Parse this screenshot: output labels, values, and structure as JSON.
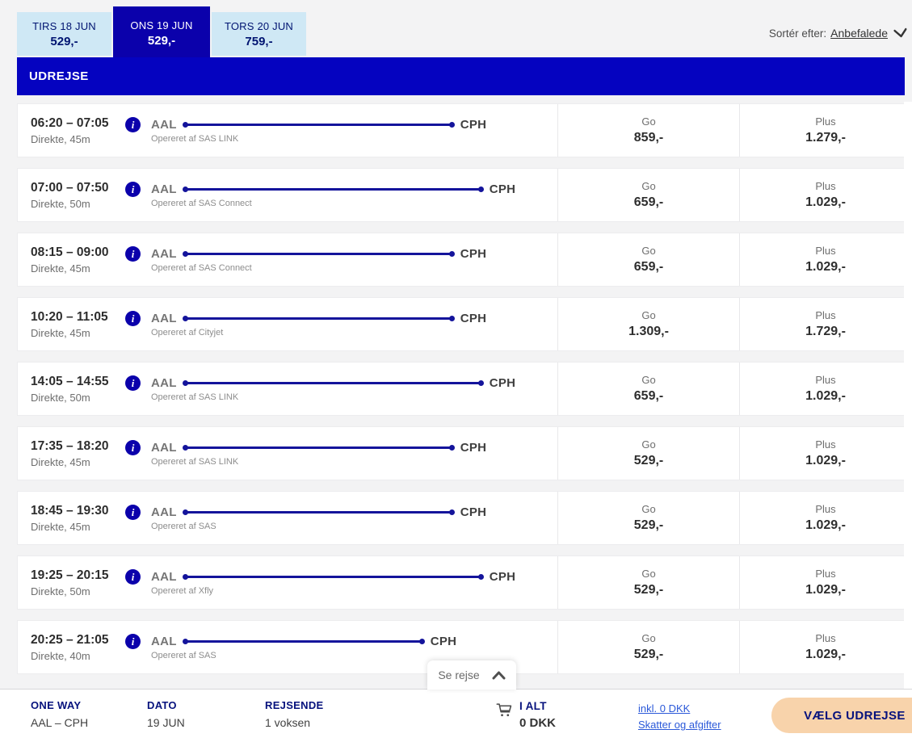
{
  "tabs": [
    {
      "date": "TIRS 18 JUN",
      "price": "529,-",
      "selected": false
    },
    {
      "date": "ONS 19 JUN",
      "price": "529,-",
      "selected": true
    },
    {
      "date": "TORS 20 JUN",
      "price": "759,-",
      "selected": false
    }
  ],
  "sort": {
    "label": "Sortér efter:",
    "value": "Anbefalede"
  },
  "section_title": "UDREJSE",
  "fare_labels": {
    "go": "Go",
    "plus": "Plus"
  },
  "flights": [
    {
      "times": "06:20 – 07:05",
      "meta": "Direkte, 45m",
      "duration_min": 45,
      "origin": "AAL",
      "destination": "CPH",
      "operator": "Opereret af SAS LINK",
      "go_price": "859,-",
      "plus_price": "1.279,-"
    },
    {
      "times": "07:00 – 07:50",
      "meta": "Direkte, 50m",
      "duration_min": 50,
      "origin": "AAL",
      "destination": "CPH",
      "operator": "Opereret af SAS Connect",
      "go_price": "659,-",
      "plus_price": "1.029,-"
    },
    {
      "times": "08:15 – 09:00",
      "meta": "Direkte, 45m",
      "duration_min": 45,
      "origin": "AAL",
      "destination": "CPH",
      "operator": "Opereret af SAS Connect",
      "go_price": "659,-",
      "plus_price": "1.029,-"
    },
    {
      "times": "10:20 – 11:05",
      "meta": "Direkte, 45m",
      "duration_min": 45,
      "origin": "AAL",
      "destination": "CPH",
      "operator": "Opereret af Cityjet",
      "go_price": "1.309,-",
      "plus_price": "1.729,-"
    },
    {
      "times": "14:05 – 14:55",
      "meta": "Direkte, 50m",
      "duration_min": 50,
      "origin": "AAL",
      "destination": "CPH",
      "operator": "Opereret af SAS LINK",
      "go_price": "659,-",
      "plus_price": "1.029,-"
    },
    {
      "times": "17:35 – 18:20",
      "meta": "Direkte, 45m",
      "duration_min": 45,
      "origin": "AAL",
      "destination": "CPH",
      "operator": "Opereret af SAS LINK",
      "go_price": "529,-",
      "plus_price": "1.029,-"
    },
    {
      "times": "18:45 – 19:30",
      "meta": "Direkte, 45m",
      "duration_min": 45,
      "origin": "AAL",
      "destination": "CPH",
      "operator": "Opereret af SAS",
      "go_price": "529,-",
      "plus_price": "1.029,-"
    },
    {
      "times": "19:25 – 20:15",
      "meta": "Direkte, 50m",
      "duration_min": 50,
      "origin": "AAL",
      "destination": "CPH",
      "operator": "Opereret af Xfly",
      "go_price": "529,-",
      "plus_price": "1.029,-"
    },
    {
      "times": "20:25 – 21:05",
      "meta": "Direkte, 40m",
      "duration_min": 40,
      "origin": "AAL",
      "destination": "CPH",
      "operator": "Opereret af SAS",
      "go_price": "529,-",
      "plus_price": "1.029,-"
    }
  ],
  "se_rejse": {
    "label": "Se rejse"
  },
  "summary": {
    "trip_type_label": "ONE WAY",
    "trip_type_value": "AAL – CPH",
    "date_label": "DATO",
    "date_value": "19 JUN",
    "travelers_label": "REJSENDE",
    "travelers_value": "1 voksen",
    "total_label": "I ALT",
    "total_value": "0 DKK",
    "tax_link_1": "inkl. 0 DKK",
    "tax_link_2": "Skatter og afgifter",
    "cta": "VÆLG UDREJSE"
  },
  "colors": {
    "sas_blue": "#0b01ab",
    "banner_blue": "#0503c0",
    "route_line_blue": "#14149b",
    "light_tab_bg": "#cfe8f5",
    "tab_text_navy": "#001471",
    "link_blue": "#2b59d9",
    "button_peach": "#f8d3ab",
    "footer_label_navy": "#06127d"
  }
}
